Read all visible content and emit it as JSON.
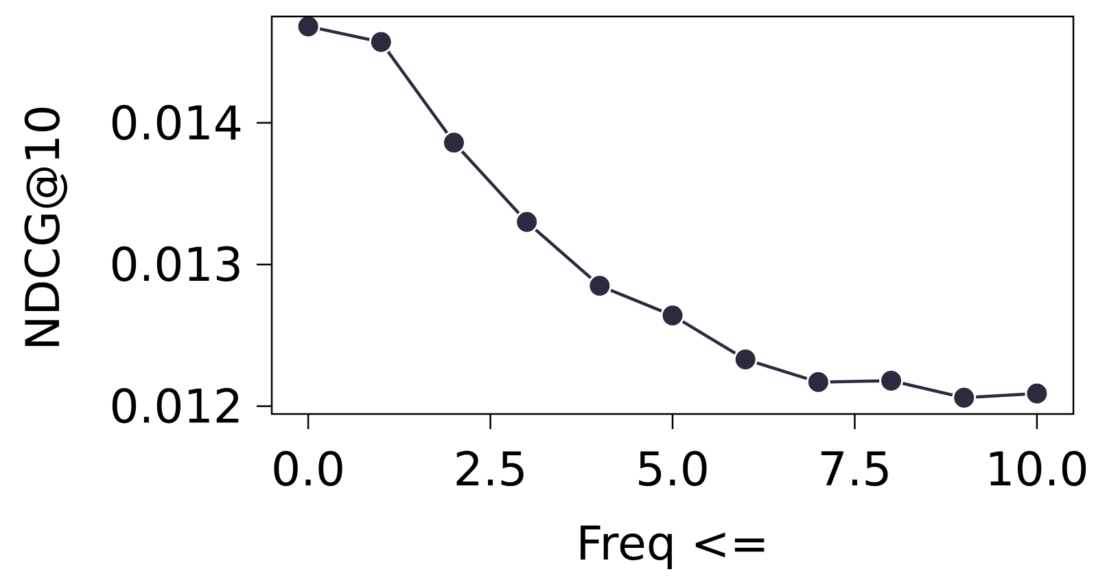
{
  "chart_data": {
    "type": "line",
    "title": "",
    "xlabel": "Freq <=",
    "ylabel": "NDCG@10",
    "x": [
      0,
      1,
      2,
      3,
      4,
      5,
      6,
      7,
      8,
      9,
      10
    ],
    "series": [
      {
        "values": [
          0.01468,
          0.01457,
          0.01386,
          0.0133,
          0.01285,
          0.01264,
          0.01233,
          0.01217,
          0.01218,
          0.01206,
          0.01209
        ]
      }
    ],
    "xlim": [
      -0.5,
      10.5
    ],
    "ylim": [
      0.011945,
      0.01475
    ],
    "xticks": [
      0.0,
      2.5,
      5.0,
      7.5,
      10.0
    ],
    "xtick_labels": [
      "0.0",
      "2.5",
      "5.0",
      "7.5",
      "10.0"
    ],
    "yticks": [
      0.012,
      0.013,
      0.014
    ],
    "ytick_labels": [
      "0.012",
      "0.013",
      "0.014"
    ],
    "grid": false,
    "legend": "none",
    "line_color": "#2b2a3f",
    "marker_color": "#2b2a3f",
    "marker_edge_color": "#ffffff"
  }
}
